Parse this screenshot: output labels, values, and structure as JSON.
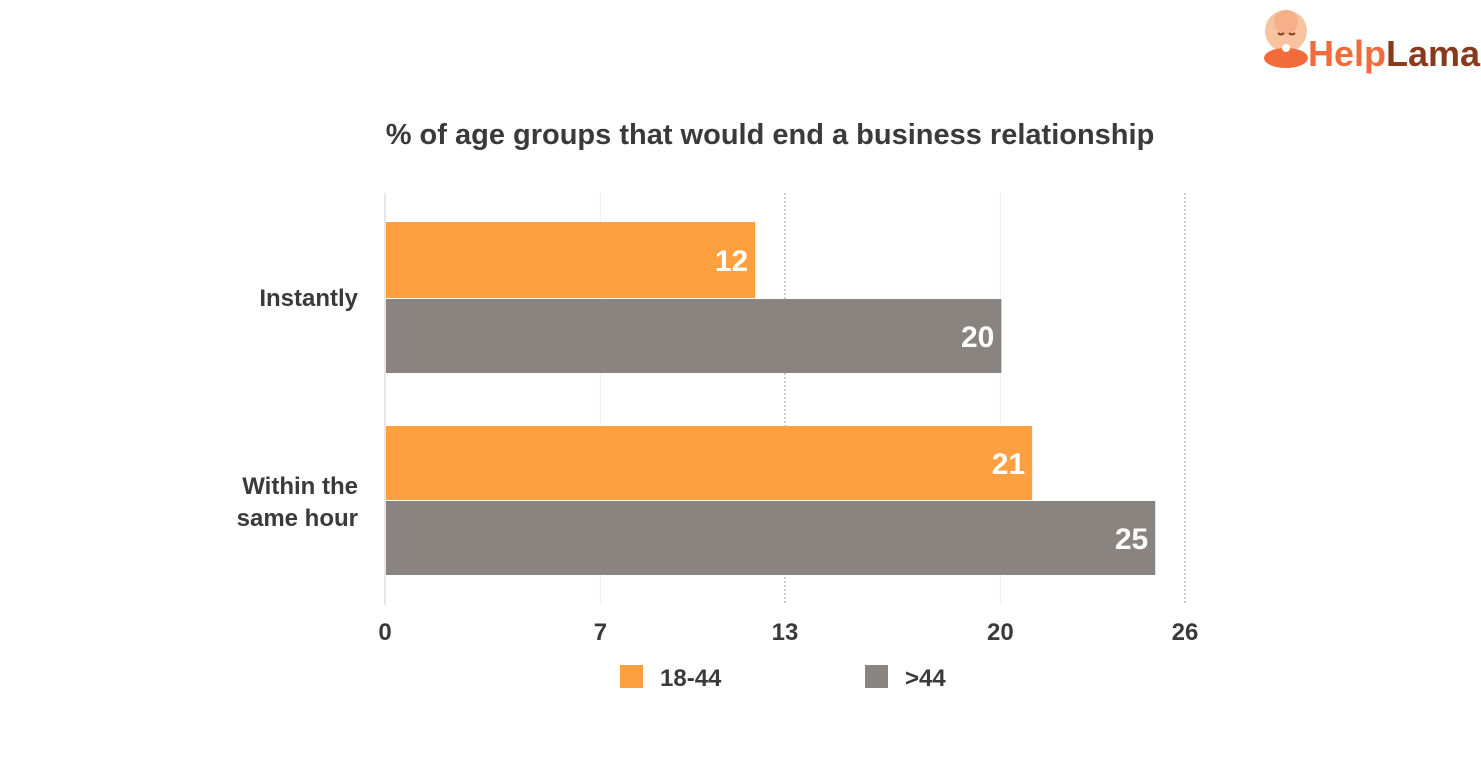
{
  "brand": {
    "name_part1": "Help",
    "name_part2": "Lama",
    "color1": "#f26b3a",
    "color2": "#8a3a1c"
  },
  "chart_data": {
    "type": "bar",
    "orientation": "horizontal",
    "title": "% of age groups that would end a business relationship",
    "categories": [
      [
        "Instantly"
      ],
      [
        "Within the",
        "same hour"
      ]
    ],
    "series": [
      {
        "name": "18-44",
        "values": [
          12,
          21
        ],
        "color": "#ffa040"
      },
      {
        "name": ">44",
        "values": [
          20,
          25
        ],
        "color": "#89847f"
      }
    ],
    "xlim": [
      0,
      26
    ],
    "xticks": [
      0,
      7,
      13,
      20,
      26
    ],
    "grid": true,
    "legend_position": "bottom"
  }
}
